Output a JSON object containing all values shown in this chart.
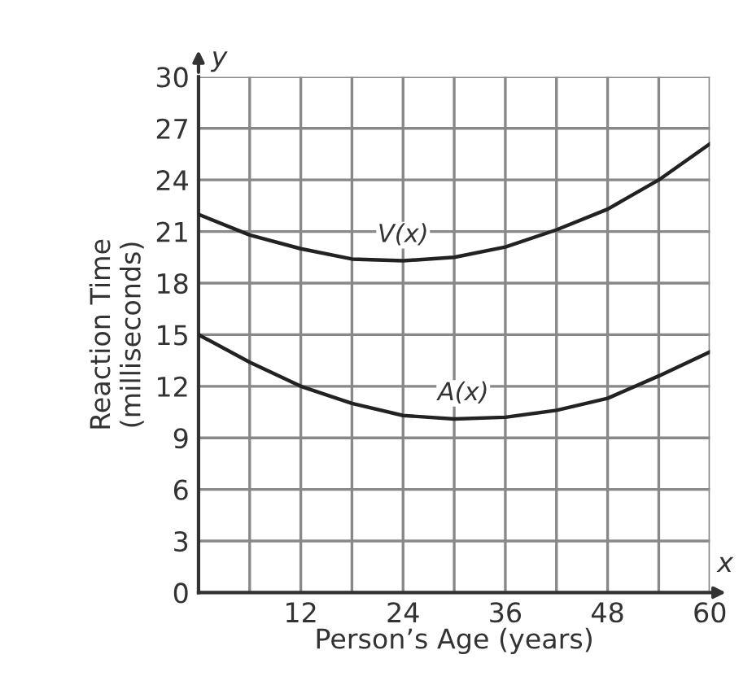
{
  "chart_data": {
    "type": "line",
    "xlabel": "Person’s Age (years)",
    "ylabel": "Reaction Time\n(milliseconds)",
    "x": [
      0,
      6,
      12,
      18,
      24,
      30,
      36,
      42,
      48,
      54,
      60
    ],
    "series": [
      {
        "name": "V(x)",
        "color": "#222222",
        "values": [
          22.0,
          20.8,
          20.0,
          19.4,
          19.3,
          19.5,
          20.1,
          21.1,
          22.3,
          24.0,
          26.1
        ]
      },
      {
        "name": "A(x)",
        "color": "#222222",
        "values": [
          15.0,
          13.4,
          12.0,
          11.0,
          10.3,
          10.1,
          10.2,
          10.6,
          11.3,
          12.6,
          14.0
        ]
      }
    ],
    "annotations": [
      "y",
      "x"
    ],
    "xlim": [
      0,
      60
    ],
    "ylim": [
      0,
      30
    ],
    "xticks": [
      {
        "value": 6,
        "label": null
      },
      12,
      {
        "value": 18,
        "label": null
      },
      24,
      {
        "value": 30,
        "label": null
      },
      36,
      {
        "value": 42,
        "label": null
      },
      48,
      {
        "value": 54,
        "label": null
      },
      60
    ],
    "yticks": [
      0,
      3,
      6,
      9,
      12,
      15,
      18,
      21,
      24,
      27,
      30
    ],
    "grid": true,
    "legend": false,
    "marker": "none",
    "line_style": "solid"
  }
}
